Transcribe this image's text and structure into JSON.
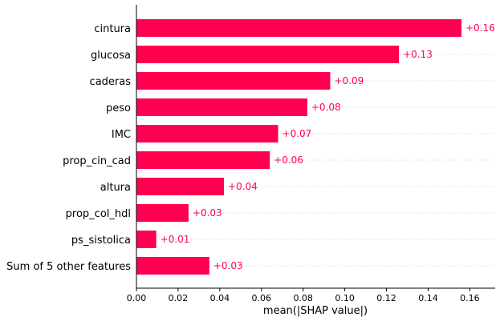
{
  "chart_data": {
    "type": "bar",
    "orientation": "horizontal",
    "categories": [
      "cintura",
      "glucosa",
      "caderas",
      "peso",
      "IMC",
      "prop_cin_cad",
      "altura",
      "prop_col_hdl",
      "ps_sistolica",
      "Sum of 5 other features"
    ],
    "values": [
      0.156,
      0.126,
      0.093,
      0.082,
      0.068,
      0.064,
      0.042,
      0.025,
      0.0095,
      0.035
    ],
    "value_labels": [
      "+0.16",
      "+0.13",
      "+0.09",
      "+0.08",
      "+0.07",
      "+0.06",
      "+0.04",
      "+0.03",
      "+0.01",
      "+0.03"
    ],
    "xlabel": "mean(|SHAP value|)",
    "xlim": [
      0,
      0.172
    ],
    "xticks": [
      0.0,
      0.02,
      0.04,
      0.06,
      0.08,
      0.1,
      0.12,
      0.14,
      0.16
    ],
    "xtick_labels": [
      "0.00",
      "0.02",
      "0.04",
      "0.06",
      "0.08",
      "0.10",
      "0.12",
      "0.14",
      "0.16"
    ],
    "grid": "horizontal dotted row guides",
    "bar_color": "#ff0051",
    "label_color": "#ff0051"
  }
}
